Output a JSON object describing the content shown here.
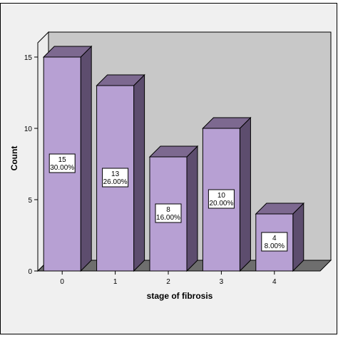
{
  "colors": {
    "bar_front": "#b7a0d3",
    "bar_top": "#7d6990",
    "bar_side": "#5d4d6e",
    "plot_back": "#c8c8c8",
    "plot_floor": "#6e6e6e",
    "plot_side": "#ececec",
    "outer_bg": "#f0f0f0"
  },
  "chart_data": {
    "type": "bar",
    "three_d": true,
    "categories": [
      "0",
      "1",
      "2",
      "3",
      "4"
    ],
    "values": [
      15,
      13,
      8,
      10,
      4
    ],
    "percentages": [
      "30.00%",
      "26.00%",
      "16.00%",
      "20.00%",
      "8.00%"
    ],
    "xlabel": "stage of fibrosis",
    "ylabel": "Count",
    "ylim": [
      0,
      15
    ],
    "yticks": [
      0,
      5,
      10,
      15
    ],
    "grid": false,
    "legend": "none"
  }
}
